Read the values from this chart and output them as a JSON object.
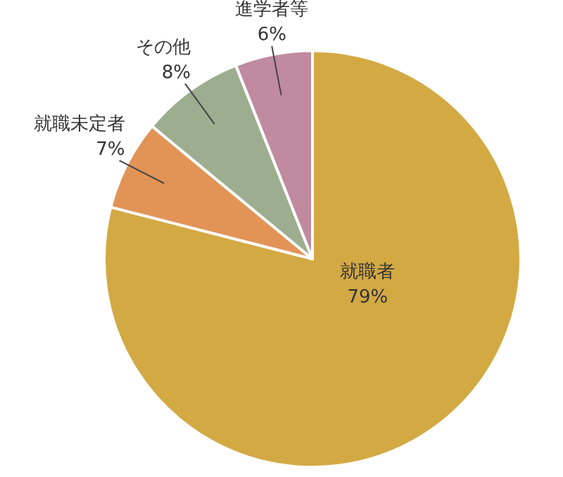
{
  "chart_data": {
    "type": "pie",
    "categories": [
      "就職者",
      "就職未定者",
      "その他",
      "進学者等"
    ],
    "values": [
      79,
      7,
      8,
      6
    ],
    "colors": [
      "#d3a944",
      "#e29457",
      "#9cae8f",
      "#c08a9f"
    ],
    "value_labels": [
      "79%",
      "7%",
      "8%",
      "6%"
    ]
  }
}
